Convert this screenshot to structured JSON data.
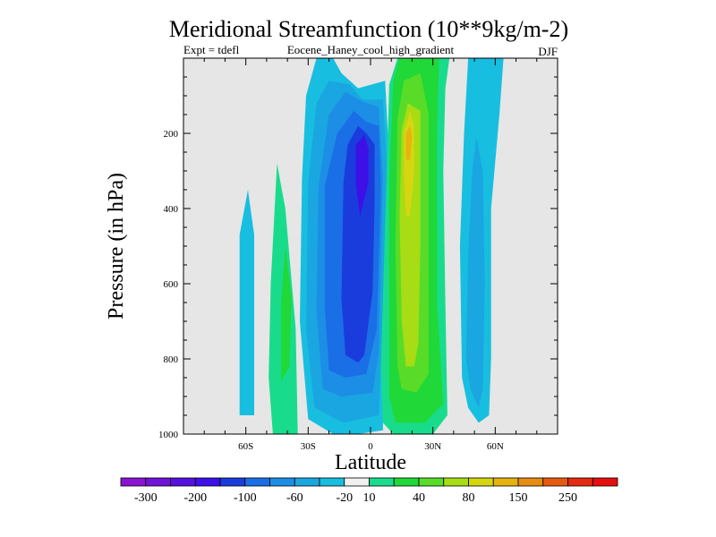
{
  "chart_data": {
    "type": "heatmap",
    "title": "Meridional Streamfunction (10**9kg/m-2)",
    "left_string": "Expt = tdefl",
    "center_string": "Eocene_Haney_cool_high_gradient",
    "right_string": "DJF",
    "xlabel": "Latitude",
    "ylabel": "Pressure (in hPa)",
    "xlim": [
      -90,
      90
    ],
    "ylim": [
      1000,
      0
    ],
    "x_ticks": [
      {
        "value": -60,
        "label": "60S"
      },
      {
        "value": -30,
        "label": "30S"
      },
      {
        "value": 0,
        "label": "0"
      },
      {
        "value": 30,
        "label": "30N"
      },
      {
        "value": 60,
        "label": "60N"
      }
    ],
    "y_ticks": [
      {
        "value": 200,
        "label": "200"
      },
      {
        "value": 400,
        "label": "400"
      },
      {
        "value": 600,
        "label": "600"
      },
      {
        "value": 800,
        "label": "800"
      },
      {
        "value": 1000,
        "label": "1000"
      }
    ],
    "missing_color": "#e6e6e6",
    "colorbar": {
      "colors": [
        "#8a14d2",
        "#7012d8",
        "#5610e0",
        "#3c10e6",
        "#1a3cdc",
        "#1a6ee6",
        "#1c8ee6",
        "#1aa6e0",
        "#18bee0",
        "#f0f0f0",
        "#18dc8c",
        "#20d838",
        "#58dc28",
        "#a8dc14",
        "#d6d610",
        "#e6b410",
        "#e68c10",
        "#e65a10",
        "#e62a10",
        "#e60f0f"
      ],
      "labels": [
        {
          "after_index": 0,
          "text": "-300"
        },
        {
          "after_index": 2,
          "text": "-200"
        },
        {
          "after_index": 4,
          "text": "-100"
        },
        {
          "after_index": 6,
          "text": "-60"
        },
        {
          "after_index": 8,
          "text": "-20"
        },
        {
          "after_index": 9,
          "text": "10"
        },
        {
          "after_index": 11,
          "text": "40"
        },
        {
          "after_index": 13,
          "text": "80"
        },
        {
          "after_index": 15,
          "text": "150"
        },
        {
          "after_index": 17,
          "text": "250"
        }
      ]
    },
    "cells": [
      {
        "name": "south-cyan-band",
        "level": -10,
        "color": "#18bee0",
        "poly": [
          [
            -63,
            950
          ],
          [
            -63,
            470
          ],
          [
            -59,
            350
          ],
          [
            -56,
            470
          ],
          [
            -56,
            950
          ]
        ]
      },
      {
        "name": "ferrel-south-outer",
        "level": 10,
        "color": "#18dc8c",
        "poly": [
          [
            -47,
            1000
          ],
          [
            -49,
            850
          ],
          [
            -48,
            600
          ],
          [
            -45,
            280
          ],
          [
            -41,
            400
          ],
          [
            -36,
            720
          ],
          [
            -35,
            1000
          ]
        ]
      },
      {
        "name": "ferrel-south-inner",
        "level": 25,
        "color": "#20d838",
        "poly": [
          [
            -43,
            860
          ],
          [
            -43,
            650
          ],
          [
            -41,
            500
          ],
          [
            -38,
            640
          ],
          [
            -39,
            820
          ]
        ]
      },
      {
        "name": "hadley-south-l1",
        "level": -15,
        "color": "#18bee0",
        "poly": [
          [
            -18,
            1000
          ],
          [
            -30,
            960
          ],
          [
            -34,
            700
          ],
          [
            -33,
            320
          ],
          [
            -31,
            100
          ],
          [
            -26,
            0
          ],
          [
            -18,
            0
          ],
          [
            -14,
            40
          ],
          [
            -6,
            80
          ],
          [
            7,
            60
          ],
          [
            9,
            270
          ],
          [
            6,
            820
          ],
          [
            6,
            990
          ],
          [
            -6,
            1000
          ]
        ]
      },
      {
        "name": "hadley-south-l2",
        "level": -25,
        "color": "#1aa6e0",
        "poly": [
          [
            -13,
            970
          ],
          [
            -27,
            930
          ],
          [
            -31,
            720
          ],
          [
            -30,
            330
          ],
          [
            -26,
            120
          ],
          [
            -20,
            60
          ],
          [
            -10,
            70
          ],
          [
            -4,
            110
          ],
          [
            6,
            110
          ],
          [
            8,
            300
          ],
          [
            5,
            820
          ],
          [
            4,
            950
          ]
        ]
      },
      {
        "name": "hadley-south-l3",
        "level": -45,
        "color": "#1c8ee6",
        "poly": [
          [
            -14,
            900
          ],
          [
            -23,
            880
          ],
          [
            -26,
            670
          ],
          [
            -25,
            340
          ],
          [
            -20,
            150
          ],
          [
            -12,
            90
          ],
          [
            -4,
            115
          ],
          [
            4,
            130
          ],
          [
            6,
            320
          ],
          [
            4,
            780
          ],
          [
            1,
            890
          ]
        ]
      },
      {
        "name": "hadley-south-l4",
        "level": -70,
        "color": "#1a6ee6",
        "poly": [
          [
            -12,
            850
          ],
          [
            -20,
            830
          ],
          [
            -22,
            660
          ],
          [
            -22,
            340
          ],
          [
            -16,
            200
          ],
          [
            -8,
            140
          ],
          [
            -2,
            170
          ],
          [
            4,
            180
          ],
          [
            5,
            340
          ],
          [
            3,
            720
          ],
          [
            -2,
            840
          ]
        ]
      },
      {
        "name": "hadley-south-l5",
        "level": -100,
        "color": "#1a3cdc",
        "poly": [
          [
            -6,
            810
          ],
          [
            -12,
            790
          ],
          [
            -14,
            640
          ],
          [
            -13,
            330
          ],
          [
            -11,
            230
          ],
          [
            -6,
            180
          ],
          [
            -2,
            200
          ],
          [
            2,
            230
          ],
          [
            2,
            380
          ],
          [
            1,
            620
          ],
          [
            -3,
            790
          ]
        ]
      },
      {
        "name": "hadley-south-l6",
        "level": -150,
        "color": "#3c10e6",
        "poly": [
          [
            -5,
            420
          ],
          [
            -7,
            340
          ],
          [
            -7,
            230
          ],
          [
            -3,
            205
          ],
          [
            -1,
            240
          ],
          [
            -1,
            330
          ]
        ]
      },
      {
        "name": "hadley-north-l1",
        "level": 15,
        "color": "#18dc8c",
        "poly": [
          [
            11,
            1000
          ],
          [
            6,
            970
          ],
          [
            5,
            820
          ],
          [
            8,
            260
          ],
          [
            9,
            70
          ],
          [
            13,
            0
          ],
          [
            38,
            0
          ],
          [
            36,
            80
          ],
          [
            35,
            300
          ],
          [
            36,
            650
          ],
          [
            37,
            950
          ],
          [
            30,
            1000
          ]
        ]
      },
      {
        "name": "hadley-north-l2",
        "level": 25,
        "color": "#20d838",
        "poly": [
          [
            12,
            970
          ],
          [
            9,
            900
          ],
          [
            9,
            320
          ],
          [
            11,
            60
          ],
          [
            14,
            0
          ],
          [
            33,
            0
          ],
          [
            32,
            200
          ],
          [
            32,
            650
          ],
          [
            35,
            920
          ],
          [
            26,
            970
          ]
        ]
      },
      {
        "name": "hadley-north-l3",
        "level": 40,
        "color": "#58dc28",
        "poly": [
          [
            15,
            880
          ],
          [
            13,
            820
          ],
          [
            12,
            500
          ],
          [
            13,
            160
          ],
          [
            16,
            60
          ],
          [
            24,
            40
          ],
          [
            28,
            150
          ],
          [
            28,
            600
          ],
          [
            28,
            840
          ],
          [
            22,
            890
          ]
        ]
      },
      {
        "name": "hadley-north-l4",
        "level": 60,
        "color": "#a8dc14",
        "poly": [
          [
            17,
            820
          ],
          [
            15,
            700
          ],
          [
            14,
            420
          ],
          [
            15,
            190
          ],
          [
            18,
            120
          ],
          [
            24,
            140
          ],
          [
            24,
            500
          ],
          [
            23,
            760
          ],
          [
            21,
            820
          ]
        ]
      },
      {
        "name": "hadley-north-l5",
        "level": 90,
        "color": "#d6d610",
        "poly": [
          [
            17,
            420
          ],
          [
            16,
            300
          ],
          [
            16,
            200
          ],
          [
            19,
            140
          ],
          [
            21,
            180
          ],
          [
            21,
            300
          ],
          [
            19,
            420
          ]
        ]
      },
      {
        "name": "hadley-north-l6",
        "level": 120,
        "color": "#e6b410",
        "poly": [
          [
            17,
            270
          ],
          [
            17,
            200
          ],
          [
            19,
            180
          ],
          [
            20,
            210
          ],
          [
            19,
            270
          ]
        ]
      },
      {
        "name": "north-cyan-band",
        "level": -15,
        "color": "#18bee0",
        "poly": [
          [
            47,
            930
          ],
          [
            44,
            850
          ],
          [
            43,
            500
          ],
          [
            45,
            200
          ],
          [
            47,
            0
          ],
          [
            64,
            0
          ],
          [
            62,
            150
          ],
          [
            58,
            400
          ],
          [
            58,
            800
          ],
          [
            57,
            950
          ],
          [
            52,
            970
          ]
        ]
      },
      {
        "name": "north-blue-core",
        "level": -25,
        "color": "#1aa6e0",
        "poly": [
          [
            48,
            880
          ],
          [
            46,
            800
          ],
          [
            47,
            520
          ],
          [
            49,
            290
          ],
          [
            51,
            210
          ],
          [
            54,
            300
          ],
          [
            55,
            600
          ],
          [
            54,
            880
          ],
          [
            52,
            930
          ]
        ]
      }
    ]
  }
}
